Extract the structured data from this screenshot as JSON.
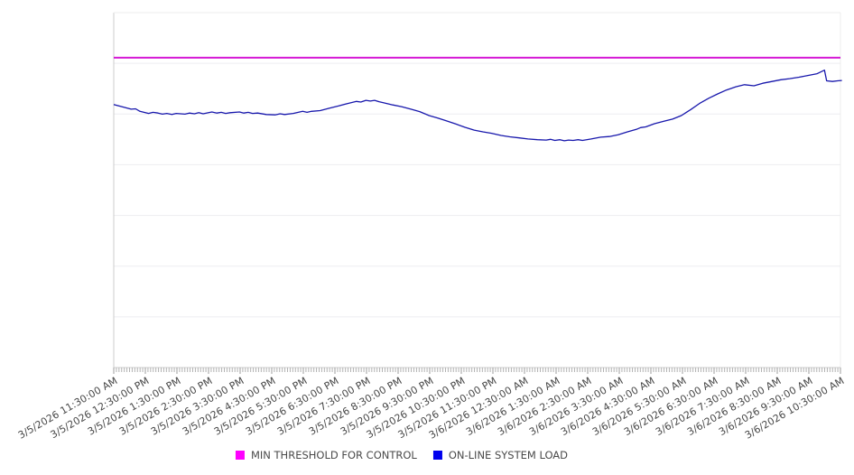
{
  "chart": {
    "background": "#ffffff",
    "plot_border_left_color": "#cccccc",
    "plot_border_faint_color": "#ececec",
    "gridline_color": "#ededf1",
    "axis_line_color": "#cfcfcf",
    "minor_tick_color": "#b3b3b3",
    "major_tick_color": "#9d9d9d",
    "x_label_color": "#474747",
    "legend_text_color": "#4a4a4a"
  },
  "chart_data": {
    "type": "line",
    "title": "",
    "xlabel": "",
    "ylabel": "",
    "legend_position": "bottom-center",
    "grid": "horizontal-only",
    "y_axis": {
      "tick_labels_visible": false,
      "units": "percent of plot height (no numeric labels rendered in image)",
      "range": [
        0,
        100
      ],
      "gridline_divisions": 7
    },
    "x_axis": {
      "minor_tick_interval_minutes": 5,
      "major_tick_interval_minutes": 60,
      "tick_labels": [
        "3/5/2026 11:30:00 AM",
        "3/5/2026 12:30:00 PM",
        "3/5/2026 1:30:00 PM",
        "3/5/2026 2:30:00 PM",
        "3/5/2026 3:30:00 PM",
        "3/5/2026 4:30:00 PM",
        "3/5/2026 5:30:00 PM",
        "3/5/2026 6:30:00 PM",
        "3/5/2026 7:30:00 PM",
        "3/5/2026 8:30:00 PM",
        "3/5/2026 9:30:00 PM",
        "3/5/2026 10:30:00 PM",
        "3/5/2026 11:30:00 PM",
        "3/6/2026 12:30:00 AM",
        "3/6/2026 1:30:00 AM",
        "3/6/2026 2:30:00 AM",
        "3/6/2026 3:30:00 AM",
        "3/6/2026 4:30:00 AM",
        "3/6/2026 5:30:00 AM",
        "3/6/2026 6:30:00 AM",
        "3/6/2026 7:30:00 AM",
        "3/6/2026 8:30:00 AM",
        "3/6/2026 9:30:00 AM",
        "3/6/2026 10:30:00 AM"
      ]
    },
    "series": [
      {
        "name": "MIN THRESHOLD FOR CONTROL",
        "type": "constant-horizontal-line",
        "swatch_color": "#ff00ff",
        "line_color": "#d518d5",
        "line_width": 2,
        "value": 87.3
      },
      {
        "name": "ON-LINE SYSTEM LOAD",
        "type": "line",
        "swatch_color": "#0000ee",
        "line_color": "#1717ac",
        "line_width": 1.3,
        "points": [
          [
            0,
            74.1
          ],
          [
            1.1,
            73.5
          ],
          [
            2.4,
            72.8
          ],
          [
            3.0,
            72.9
          ],
          [
            3.6,
            72.2
          ],
          [
            4.8,
            71.6
          ],
          [
            5.4,
            71.9
          ],
          [
            6.1,
            71.7
          ],
          [
            6.7,
            71.4
          ],
          [
            7.3,
            71.6
          ],
          [
            8.0,
            71.3
          ],
          [
            8.6,
            71.6
          ],
          [
            9.8,
            71.4
          ],
          [
            10.4,
            71.7
          ],
          [
            11.1,
            71.5
          ],
          [
            11.7,
            71.8
          ],
          [
            12.3,
            71.5
          ],
          [
            13.5,
            72.0
          ],
          [
            14.2,
            71.7
          ],
          [
            14.8,
            71.9
          ],
          [
            15.4,
            71.6
          ],
          [
            16.0,
            71.8
          ],
          [
            17.3,
            72.0
          ],
          [
            17.9,
            71.7
          ],
          [
            18.5,
            71.9
          ],
          [
            19.1,
            71.6
          ],
          [
            19.8,
            71.7
          ],
          [
            21.0,
            71.3
          ],
          [
            22.2,
            71.2
          ],
          [
            22.9,
            71.5
          ],
          [
            23.5,
            71.3
          ],
          [
            24.7,
            71.6
          ],
          [
            26.0,
            72.2
          ],
          [
            26.6,
            71.9
          ],
          [
            27.2,
            72.2
          ],
          [
            28.4,
            72.4
          ],
          [
            29.7,
            73.1
          ],
          [
            30.9,
            73.7
          ],
          [
            32.2,
            74.4
          ],
          [
            33.4,
            75.0
          ],
          [
            34.0,
            74.8
          ],
          [
            34.7,
            75.3
          ],
          [
            35.3,
            75.1
          ],
          [
            35.9,
            75.3
          ],
          [
            36.5,
            74.9
          ],
          [
            37.1,
            74.6
          ],
          [
            38.4,
            74.0
          ],
          [
            39.6,
            73.5
          ],
          [
            40.9,
            72.8
          ],
          [
            42.1,
            72.1
          ],
          [
            43.4,
            71.0
          ],
          [
            44.6,
            70.3
          ],
          [
            45.8,
            69.5
          ],
          [
            47.1,
            68.6
          ],
          [
            48.3,
            67.7
          ],
          [
            49.6,
            66.9
          ],
          [
            50.8,
            66.4
          ],
          [
            52.0,
            66.0
          ],
          [
            53.3,
            65.4
          ],
          [
            54.5,
            65.0
          ],
          [
            55.8,
            64.7
          ],
          [
            57.0,
            64.4
          ],
          [
            58.3,
            64.2
          ],
          [
            59.5,
            64.1
          ],
          [
            60.1,
            64.3
          ],
          [
            60.7,
            64.0
          ],
          [
            61.4,
            64.2
          ],
          [
            62.0,
            63.9
          ],
          [
            62.6,
            64.1
          ],
          [
            63.2,
            64.0
          ],
          [
            63.9,
            64.2
          ],
          [
            64.5,
            64.0
          ],
          [
            65.7,
            64.4
          ],
          [
            67.0,
            64.9
          ],
          [
            68.2,
            65.1
          ],
          [
            69.4,
            65.6
          ],
          [
            70.7,
            66.4
          ],
          [
            71.9,
            67.1
          ],
          [
            72.5,
            67.6
          ],
          [
            73.2,
            67.8
          ],
          [
            74.4,
            68.7
          ],
          [
            75.7,
            69.4
          ],
          [
            76.9,
            70.0
          ],
          [
            78.1,
            71.0
          ],
          [
            79.4,
            72.7
          ],
          [
            80.6,
            74.4
          ],
          [
            81.9,
            75.9
          ],
          [
            83.1,
            77.1
          ],
          [
            84.3,
            78.2
          ],
          [
            85.6,
            79.1
          ],
          [
            86.8,
            79.7
          ],
          [
            88.1,
            79.4
          ],
          [
            89.3,
            80.1
          ],
          [
            90.6,
            80.6
          ],
          [
            91.8,
            81.1
          ],
          [
            93.0,
            81.4
          ],
          [
            94.3,
            81.8
          ],
          [
            95.5,
            82.3
          ],
          [
            96.8,
            82.8
          ],
          [
            97.5,
            83.5
          ],
          [
            97.8,
            83.8
          ],
          [
            98.1,
            80.8
          ],
          [
            98.9,
            80.6
          ],
          [
            99.6,
            80.8
          ],
          [
            100.2,
            80.9
          ]
        ]
      }
    ]
  }
}
